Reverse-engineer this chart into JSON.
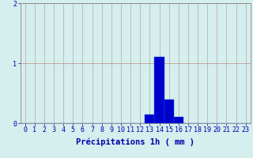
{
  "categories": [
    0,
    1,
    2,
    3,
    4,
    5,
    6,
    7,
    8,
    9,
    10,
    11,
    12,
    13,
    14,
    15,
    16,
    17,
    18,
    19,
    20,
    21,
    22,
    23
  ],
  "values": [
    0,
    0,
    0,
    0,
    0,
    0,
    0,
    0,
    0,
    0,
    0,
    0,
    0,
    0.15,
    1.1,
    0.4,
    0.1,
    0,
    0,
    0,
    0,
    0,
    0,
    0
  ],
  "bar_color": "#0000cc",
  "bar_edge_color": "#0055ee",
  "background_color": "#d5eeee",
  "grid_color": "#b8c8c8",
  "tick_color": "#0000aa",
  "label_color": "#0000aa",
  "xlabel": "Précipitations 1h ( mm )",
  "ylim": [
    0,
    2
  ],
  "xlim": [
    -0.5,
    23.5
  ],
  "yticks": [
    0,
    1,
    2
  ],
  "label_fontsize": 7.5,
  "tick_fontsize": 6
}
